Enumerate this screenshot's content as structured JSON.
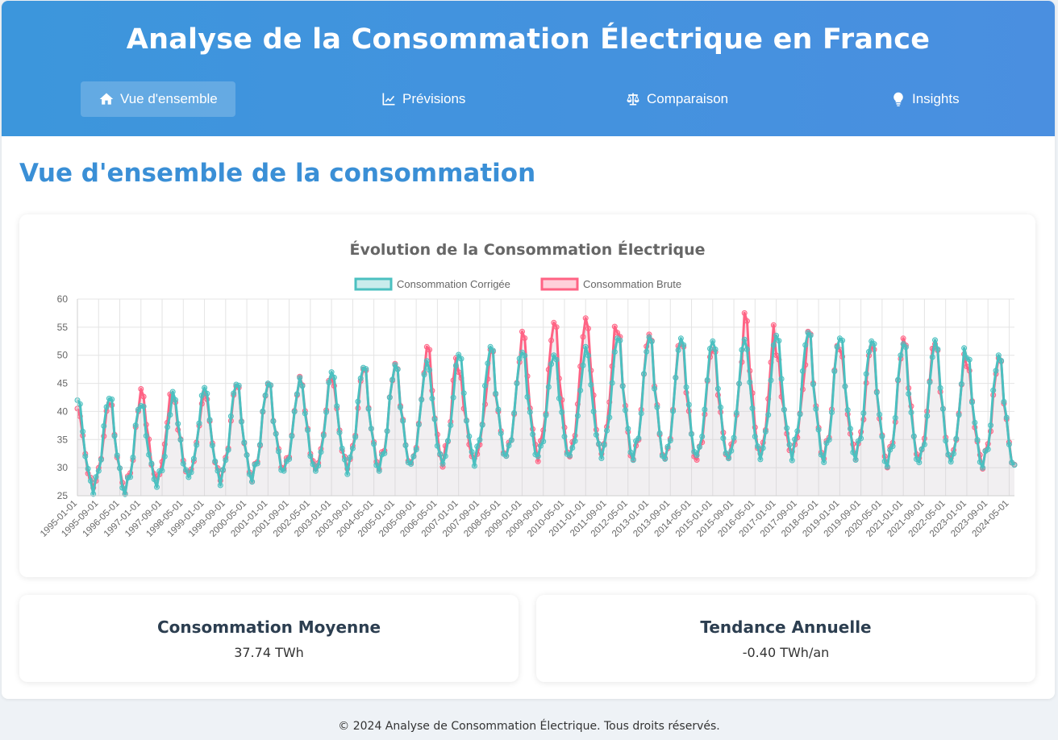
{
  "header": {
    "title": "Analyse de la Consommation Électrique en France",
    "nav": [
      {
        "label": "Vue d'ensemble",
        "icon": "home-icon",
        "active": true
      },
      {
        "label": "Prévisions",
        "icon": "line-chart-icon",
        "active": false
      },
      {
        "label": "Comparaison",
        "icon": "balance-scale-icon",
        "active": false
      },
      {
        "label": "Insights",
        "icon": "lightbulb-icon",
        "active": false
      }
    ]
  },
  "main": {
    "section_title": "Vue d'ensemble de la consommation",
    "stats": [
      {
        "title": "Consommation Moyenne",
        "value": "37.74 TWh"
      },
      {
        "title": "Tendance Annuelle",
        "value": "-0.40 TWh/an"
      }
    ]
  },
  "footer": {
    "text": "© 2024 Analyse de Consommation Électrique. Tous droits réservés."
  },
  "colors": {
    "corrected": "#4bc0c0",
    "raw": "#ff6384",
    "accent": "#3a8fd6",
    "header": "#3c96dc"
  },
  "chart_data": {
    "type": "line",
    "title": "Évolution de la Consommation Électrique",
    "xlabel": "",
    "ylabel": "",
    "ylim": [
      25,
      60
    ],
    "y_ticks": [
      25,
      30,
      35,
      40,
      45,
      50,
      55,
      60
    ],
    "x_start": "1995-01",
    "x_end": "2024-07",
    "x_tick_labels": [
      "1995-01-01",
      "1995-09-01",
      "1996-05-01",
      "1997-01-01",
      "1997-09-01",
      "1998-05-01",
      "1999-01-01",
      "1999-09-01",
      "2000-05-01",
      "2001-01-01",
      "2001-09-01",
      "2002-05-01",
      "2003-01-01",
      "2003-09-01",
      "2004-05-01",
      "2005-01-01",
      "2005-09-01",
      "2006-05-01",
      "2007-01-01",
      "2007-09-01",
      "2008-05-01",
      "2009-01-01",
      "2009-09-01",
      "2010-05-01",
      "2011-01-01",
      "2011-09-01",
      "2012-05-01",
      "2013-01-01",
      "2013-09-01",
      "2014-05-01",
      "2015-01-01",
      "2015-09-01",
      "2016-05-01",
      "2017-01-01",
      "2017-09-01",
      "2018-05-01",
      "2019-01-01",
      "2019-09-01",
      "2020-05-01",
      "2021-01-01",
      "2021-09-01",
      "2022-05-01",
      "2023-01-01",
      "2023-09-01",
      "2024-05-01"
    ],
    "grid": true,
    "legend_position": "top",
    "series": [
      {
        "name": "Consommation Corrigée",
        "color": "#4bc0c0",
        "january_peaks": [
          42.0,
          42.3,
          41.0,
          43.5,
          44.2,
          44.8,
          45.0,
          46.0,
          47.0,
          47.8,
          48.3,
          49.0,
          50.1,
          51.5,
          50.5,
          50.0,
          51.5,
          53.0,
          53.2,
          53.0,
          52.5,
          52.8,
          53.5,
          54.0,
          53.0,
          52.5,
          52.0,
          52.7,
          49.5,
          50.0
        ],
        "summer_troughs": [
          26.0,
          25.5,
          27.0,
          28.0,
          27.5,
          27.8,
          29.0,
          29.0,
          29.5,
          29.5,
          30.0,
          30.5,
          31.0,
          31.5,
          31.5,
          31.5,
          32.0,
          31.5,
          31.0,
          31.5,
          31.0,
          31.5,
          32.0,
          31.0,
          31.5,
          30.0,
          30.5,
          30.5,
          30.0,
          29.8
        ]
      },
      {
        "name": "Consommation Brute",
        "color": "#ff6384",
        "january_peaks": [
          40.5,
          41.5,
          44.0,
          42.5,
          43.5,
          44.5,
          44.8,
          46.2,
          46.0,
          47.5,
          48.5,
          51.5,
          47.0,
          51.0,
          54.2,
          55.8,
          56.6,
          54.0,
          53.7,
          52.0,
          51.0,
          57.5,
          50.0,
          54.2,
          51.0,
          51.5,
          53.0,
          52.0,
          48.0,
          49.5
        ],
        "summer_troughs": [
          26.5,
          26.0,
          27.5,
          28.5,
          28.0,
          28.0,
          29.5,
          29.5,
          30.0,
          30.0,
          30.2,
          30.7,
          31.0,
          31.8,
          31.8,
          31.5,
          32.0,
          31.0,
          31.0,
          31.0,
          31.5,
          31.8,
          32.2,
          31.5,
          32.0,
          30.5,
          31.0,
          31.0,
          30.5,
          30.0
        ]
      }
    ]
  }
}
